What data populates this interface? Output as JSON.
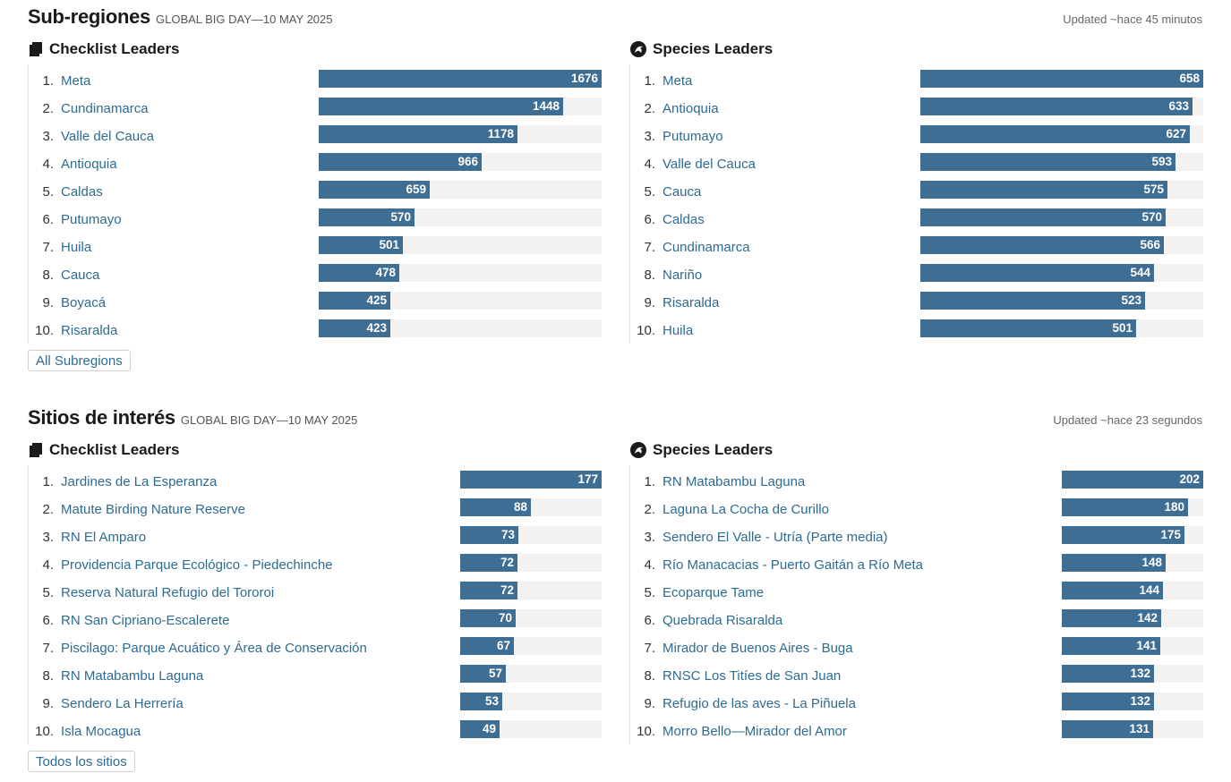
{
  "sections": [
    {
      "title": "Sub-regiones",
      "subtitle": "GLOBAL BIG DAY—10 MAY 2025",
      "updated": "Updated ~hace 45 minutos",
      "button_label": "All Subregions",
      "checklist": {
        "title": "Checklist Leaders",
        "icon": "checklist-icon",
        "max": 1676,
        "items": [
          {
            "rank": "1.",
            "name": "Meta",
            "value": 1676
          },
          {
            "rank": "2.",
            "name": "Cundinamarca",
            "value": 1448
          },
          {
            "rank": "3.",
            "name": "Valle del Cauca",
            "value": 1178
          },
          {
            "rank": "4.",
            "name": "Antioquia",
            "value": 966
          },
          {
            "rank": "5.",
            "name": "Caldas",
            "value": 659
          },
          {
            "rank": "6.",
            "name": "Putumayo",
            "value": 570
          },
          {
            "rank": "7.",
            "name": "Huila",
            "value": 501
          },
          {
            "rank": "8.",
            "name": "Cauca",
            "value": 478
          },
          {
            "rank": "9.",
            "name": "Boyacá",
            "value": 425
          },
          {
            "rank": "10.",
            "name": "Risaralda",
            "value": 423
          }
        ]
      },
      "species": {
        "title": "Species Leaders",
        "icon": "bird-icon",
        "max": 658,
        "items": [
          {
            "rank": "1.",
            "name": "Meta",
            "value": 658
          },
          {
            "rank": "2.",
            "name": "Antioquia",
            "value": 633
          },
          {
            "rank": "3.",
            "name": "Putumayo",
            "value": 627
          },
          {
            "rank": "4.",
            "name": "Valle del Cauca",
            "value": 593
          },
          {
            "rank": "5.",
            "name": "Cauca",
            "value": 575
          },
          {
            "rank": "6.",
            "name": "Caldas",
            "value": 570
          },
          {
            "rank": "7.",
            "name": "Cundinamarca",
            "value": 566
          },
          {
            "rank": "8.",
            "name": "Nariño",
            "value": 544
          },
          {
            "rank": "9.",
            "name": "Risaralda",
            "value": 523
          },
          {
            "rank": "10.",
            "name": "Huila",
            "value": 501
          }
        ]
      }
    },
    {
      "title": "Sitios de interés",
      "subtitle": "GLOBAL BIG DAY—10 MAY 2025",
      "updated": "Updated ~hace 23 segundos",
      "button_label": "Todos los sitios",
      "checklist": {
        "title": "Checklist Leaders",
        "icon": "checklist-icon",
        "max": 177,
        "items": [
          {
            "rank": "1.",
            "name": "Jardines de La Esperanza",
            "value": 177
          },
          {
            "rank": "2.",
            "name": "Matute Birding Nature Reserve",
            "value": 88
          },
          {
            "rank": "3.",
            "name": "RN El Amparo",
            "value": 73
          },
          {
            "rank": "4.",
            "name": "Providencia Parque Ecológico - Piedechinche",
            "value": 72
          },
          {
            "rank": "5.",
            "name": "Reserva Natural Refugio del Tororoi",
            "value": 72
          },
          {
            "rank": "6.",
            "name": "RN San Cipriano-Escalerete",
            "value": 70
          },
          {
            "rank": "7.",
            "name": "Piscilago: Parque Acuático y Área de Conservación",
            "value": 67
          },
          {
            "rank": "8.",
            "name": "RN Matabambu Laguna",
            "value": 57
          },
          {
            "rank": "9.",
            "name": "Sendero La Herrería",
            "value": 53
          },
          {
            "rank": "10.",
            "name": "Isla Mocagua",
            "value": 49
          }
        ]
      },
      "species": {
        "title": "Species Leaders",
        "icon": "bird-icon",
        "max": 202,
        "items": [
          {
            "rank": "1.",
            "name": "RN Matabambu Laguna",
            "value": 202
          },
          {
            "rank": "2.",
            "name": "Laguna La Cocha de Curillo",
            "value": 180
          },
          {
            "rank": "3.",
            "name": "Sendero El Valle - Utría (Parte media)",
            "value": 175
          },
          {
            "rank": "4.",
            "name": "Río Manacacias - Puerto Gaitán a Río Meta",
            "value": 148
          },
          {
            "rank": "5.",
            "name": "Ecoparque Tame",
            "value": 144
          },
          {
            "rank": "6.",
            "name": "Quebrada Risaralda",
            "value": 142
          },
          {
            "rank": "7.",
            "name": "Mirador de Buenos Aires - Buga",
            "value": 141
          },
          {
            "rank": "8.",
            "name": "RNSC Los Titíes de San Juan",
            "value": 132
          },
          {
            "rank": "9.",
            "name": "Refugio de las aves - La Piñuela",
            "value": 132
          },
          {
            "rank": "10.",
            "name": "Morro Bello—Mirador del Amor",
            "value": 131
          }
        ]
      }
    }
  ],
  "colors": {
    "bar": "#3e6e93",
    "track": "#f3f2f1",
    "link": "#2d6b93"
  }
}
